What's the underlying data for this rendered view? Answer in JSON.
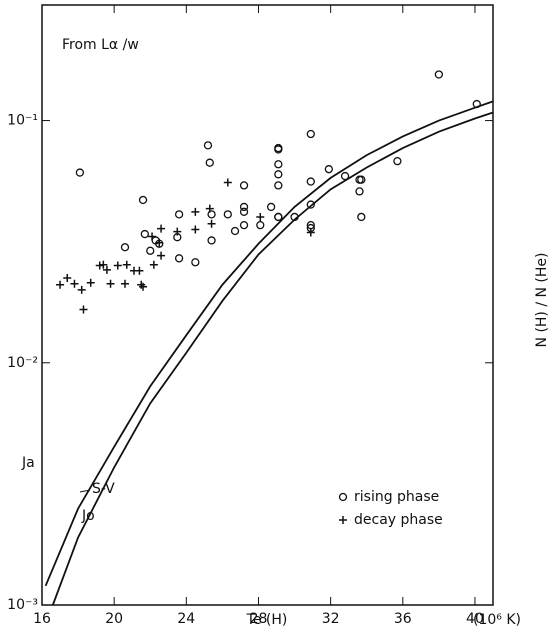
{
  "chart_data": {
    "type": "scatter",
    "title": "From Lα /w",
    "x_label": "Te (H)",
    "x_unit": "(10⁶ K)",
    "y_label": "N (H) / N (He)",
    "annotations": [
      "S-V"
    ],
    "xlim": [
      16,
      41
    ],
    "xticks": [
      16,
      20,
      24,
      28,
      32,
      36,
      40
    ],
    "ylim": [
      0.001,
      0.3
    ],
    "yticks": [
      {
        "value": 0.001,
        "label": "10⁻³"
      },
      {
        "value": 0.01,
        "label": "10⁻²"
      },
      {
        "value": 0.1,
        "label": "10⁻¹"
      }
    ],
    "log_y": true,
    "color": "#111111",
    "series": [
      {
        "name": "rising phase",
        "marker": "circle",
        "legend": true,
        "x": [
          18.1,
          20.6,
          21.6,
          21.7,
          22.0,
          22.3,
          22.5,
          23.5,
          23.6,
          23.6,
          24.5,
          25.2,
          25.3,
          25.4,
          25.4,
          26.3,
          26.7,
          27.2,
          27.2,
          27.2,
          27.2,
          28.1,
          28.7,
          29.1,
          29.1,
          29.1,
          29.1,
          29.1,
          29.1,
          29.1,
          30.0,
          30.9,
          30.9,
          30.9,
          30.9,
          30.9,
          31.9,
          32.8,
          33.6,
          33.6,
          33.7,
          33.7,
          35.7,
          38.0,
          40.1
        ],
        "values": [
          0.061,
          0.03,
          0.047,
          0.034,
          0.029,
          0.032,
          0.031,
          0.033,
          0.041,
          0.027,
          0.026,
          0.079,
          0.067,
          0.041,
          0.032,
          0.041,
          0.035,
          0.054,
          0.044,
          0.042,
          0.037,
          0.037,
          0.044,
          0.077,
          0.076,
          0.066,
          0.06,
          0.054,
          0.04,
          0.04,
          0.04,
          0.088,
          0.056,
          0.045,
          0.037,
          0.036,
          0.063,
          0.059,
          0.057,
          0.051,
          0.057,
          0.04,
          0.068,
          0.155,
          0.117
        ]
      },
      {
        "name": "decay phase",
        "marker": "plus",
        "legend": true,
        "x": [
          17.0,
          17.4,
          17.8,
          18.2,
          18.3,
          18.7,
          19.2,
          19.4,
          19.6,
          19.8,
          20.2,
          20.6,
          20.7,
          21.1,
          21.4,
          21.5,
          21.6,
          22.1,
          22.2,
          22.5,
          22.6,
          22.6,
          23.5,
          24.5,
          24.5,
          25.3,
          25.4,
          26.3,
          28.1,
          30.9
        ],
        "values": [
          0.021,
          0.0224,
          0.0212,
          0.02,
          0.0166,
          0.0214,
          0.0252,
          0.0254,
          0.0242,
          0.0212,
          0.0252,
          0.0212,
          0.0254,
          0.024,
          0.024,
          0.021,
          0.0206,
          0.0332,
          0.0254,
          0.0313,
          0.0277,
          0.0358,
          0.0348,
          0.042,
          0.0355,
          0.0433,
          0.0375,
          0.0555,
          0.04,
          0.0345
        ]
      },
      {
        "name": "Ja",
        "marker": "line",
        "legend": false,
        "x": [
          16.2,
          18,
          20,
          22,
          24,
          26,
          28,
          30,
          32,
          34,
          36,
          38,
          40,
          41
        ],
        "values": [
          0.0012,
          0.0025,
          0.0045,
          0.008,
          0.013,
          0.021,
          0.031,
          0.044,
          0.058,
          0.072,
          0.086,
          0.1,
          0.113,
          0.12
        ]
      },
      {
        "name": "Jo",
        "marker": "line",
        "legend": false,
        "x": [
          16.6,
          18,
          20,
          22,
          24,
          26,
          28,
          30,
          32,
          34,
          36,
          38,
          40,
          41
        ],
        "values": [
          0.001,
          0.0019,
          0.0037,
          0.0068,
          0.011,
          0.018,
          0.028,
          0.039,
          0.052,
          0.064,
          0.077,
          0.09,
          0.102,
          0.108
        ]
      }
    ]
  }
}
